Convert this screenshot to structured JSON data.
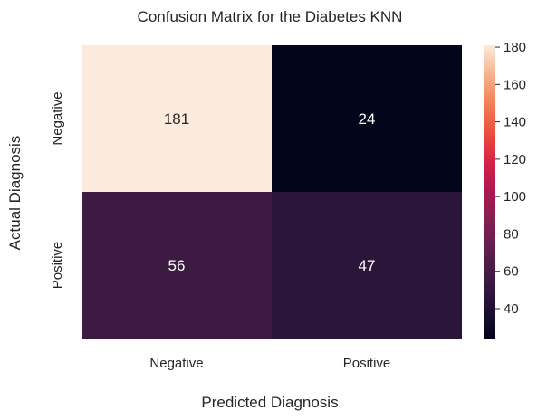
{
  "chart_data": {
    "type": "heatmap",
    "title": "Confusion Matrix for the Diabetes KNN",
    "xlabel": "Predicted Diagnosis",
    "ylabel": "Actual Diagnosis",
    "x_categories": [
      "Negative",
      "Positive"
    ],
    "y_categories": [
      "Negative",
      "Positive"
    ],
    "values": [
      [
        181,
        24
      ],
      [
        56,
        47
      ]
    ],
    "colorbar": {
      "min": 24,
      "max": 181,
      "ticks": [
        40,
        60,
        80,
        100,
        120,
        140,
        160,
        180
      ],
      "colormap": "rocket"
    },
    "cell_labels": true
  }
}
